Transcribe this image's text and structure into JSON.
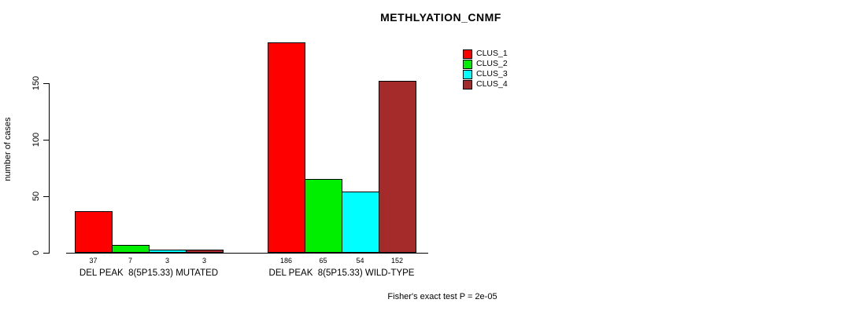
{
  "title": "METHLYATION_CNMF",
  "y_axis": {
    "label": "number of cases",
    "ticks": [
      0,
      50,
      100,
      150
    ]
  },
  "footer": "Fisher's exact test P = 2e-05",
  "chart_data": {
    "type": "bar",
    "title": "METHLYATION_CNMF",
    "xlabel": "",
    "ylabel": "number of cases",
    "ylim": [
      0,
      190
    ],
    "yticks": [
      0,
      50,
      100,
      150
    ],
    "grid": false,
    "legend_position": "top-right",
    "series_names": [
      "CLUS_1",
      "CLUS_2",
      "CLUS_3",
      "CLUS_4"
    ],
    "series_colors": [
      "#ff0000",
      "#00ee00",
      "#00ffff",
      "#a52a2a"
    ],
    "groups": [
      {
        "label": "DEL PEAK  8(5P15.33) MUTATED",
        "values": [
          37,
          7,
          3,
          3
        ]
      },
      {
        "label": "DEL PEAK  8(5P15.33) WILD-TYPE",
        "values": [
          186,
          65,
          54,
          152
        ]
      }
    ],
    "annotation": "Fisher's exact test P = 2e-05"
  }
}
